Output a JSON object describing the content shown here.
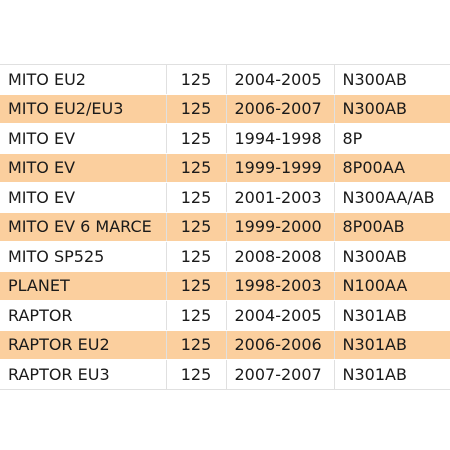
{
  "table": {
    "rows": [
      {
        "model": "MITO EU2",
        "cc": "125",
        "years": "2004-2005",
        "code": "N300AB"
      },
      {
        "model": "MITO EU2/EU3",
        "cc": "125",
        "years": "2006-2007",
        "code": "N300AB"
      },
      {
        "model": "MITO EV",
        "cc": "125",
        "years": "1994-1998",
        "code": "8P"
      },
      {
        "model": "MITO EV",
        "cc": "125",
        "years": "1999-1999",
        "code": "8P00AA"
      },
      {
        "model": "MITO EV",
        "cc": "125",
        "years": "2001-2003",
        "code": "N300AA/AB"
      },
      {
        "model": "MITO EV 6 MARCE",
        "cc": "125",
        "years": "1999-2000",
        "code": "8P00AB"
      },
      {
        "model": "MITO SP525",
        "cc": "125",
        "years": "2008-2008",
        "code": "N300AB"
      },
      {
        "model": "PLANET",
        "cc": "125",
        "years": "1998-2003",
        "code": "N100AA"
      },
      {
        "model": "RAPTOR",
        "cc": "125",
        "years": "2004-2005",
        "code": "N301AB"
      },
      {
        "model": "RAPTOR EU2",
        "cc": "125",
        "years": "2006-2006",
        "code": "N301AB"
      },
      {
        "model": "RAPTOR EU3",
        "cc": "125",
        "years": "2007-2007",
        "code": "N301AB"
      }
    ]
  },
  "colors": {
    "highlight_row": "#fbcf9e",
    "normal_row": "#ffffff",
    "grid_line": "#e0e0e0"
  }
}
